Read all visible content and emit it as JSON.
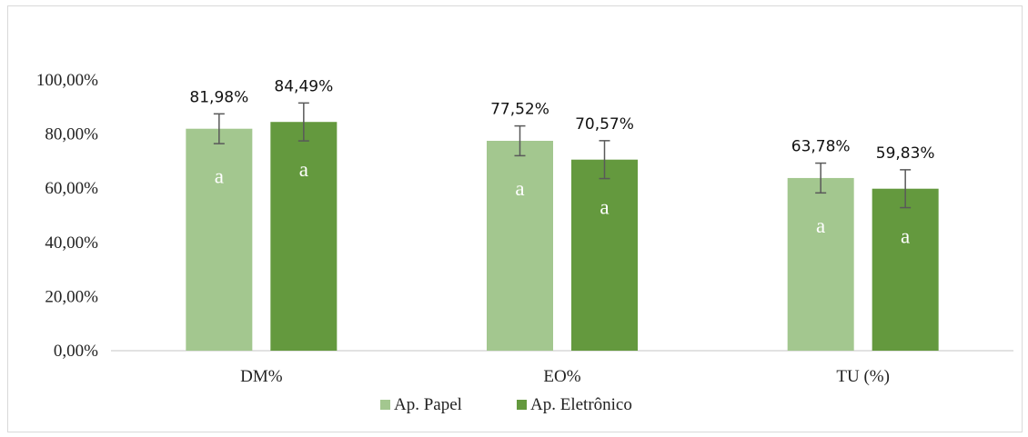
{
  "chart_data": {
    "type": "bar",
    "categories": [
      "DM%",
      "EO%",
      "TU (%)"
    ],
    "series": [
      {
        "name": "Ap. Papel",
        "color": "#a3c78f",
        "values": [
          81.98,
          77.52,
          63.78
        ],
        "labels": [
          "81,98%",
          "77,52%",
          "63,78%"
        ],
        "error": [
          5.5,
          5.5,
          5.5
        ],
        "letters": [
          "a",
          "a",
          "a"
        ]
      },
      {
        "name": "Ap. Eletrônico",
        "color": "#64993e",
        "values": [
          84.49,
          70.57,
          59.83
        ],
        "labels": [
          "84,49%",
          "70,57%",
          "59,83%"
        ],
        "error": [
          7.0,
          7.0,
          7.0
        ],
        "letters": [
          "a",
          "a",
          "a"
        ]
      }
    ],
    "yticks": [
      "0,00%",
      "20,00%",
      "40,00%",
      "60,00%",
      "80,00%",
      "100,00%"
    ],
    "ylim": [
      0,
      100
    ],
    "grid": false,
    "legend_position": "bottom",
    "title": "",
    "xlabel": "",
    "ylabel": ""
  }
}
